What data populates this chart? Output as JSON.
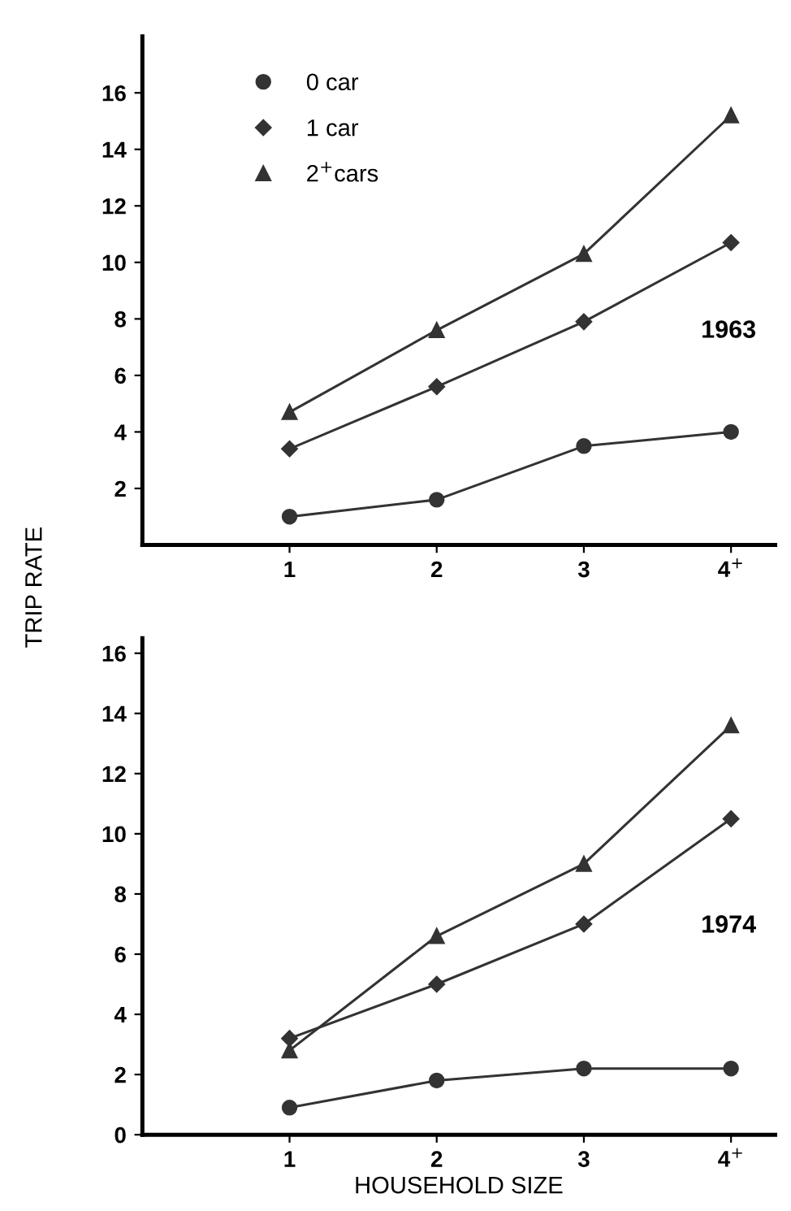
{
  "chart_data": [
    {
      "type": "line",
      "ylabel": "TRIP RATE",
      "categories": [
        "1",
        "2",
        "3",
        "4$^{+}$"
      ],
      "ylim": [
        0,
        18
      ],
      "yticks": [
        2,
        4,
        6,
        8,
        10,
        12,
        14,
        16
      ],
      "legend": "top left",
      "grid": false,
      "annotations": [
        "1963"
      ],
      "series": [
        {
          "name": "0 car",
          "color": "#333333",
          "marker": "circle",
          "values": [
            1.0,
            1.6,
            3.5,
            4.0
          ]
        },
        {
          "name": "1 car",
          "color": "#333333",
          "marker": "diamond",
          "values": [
            3.4,
            5.6,
            7.9,
            10.7
          ]
        },
        {
          "name": "2$^{+}$cars",
          "color": "#333333",
          "marker": "triangle",
          "values": [
            4.7,
            7.6,
            10.3,
            15.2
          ]
        }
      ]
    },
    {
      "type": "line",
      "xlabel": "HOUSEHOLD SIZE",
      "categories": [
        "1",
        "2",
        "3",
        "4$^{+}$"
      ],
      "ylim": [
        0,
        16.5
      ],
      "yticks": [
        0,
        2,
        4,
        6,
        8,
        10,
        12,
        14,
        16
      ],
      "grid": false,
      "annotations": [
        "1974"
      ],
      "series": [
        {
          "color": "#333333",
          "marker": "circle",
          "values": [
            0.9,
            1.8,
            2.2,
            2.2
          ]
        },
        {
          "color": "#333333",
          "marker": "diamond",
          "values": [
            3.2,
            5.0,
            7.0,
            10.5
          ]
        },
        {
          "color": "#333333",
          "marker": "triangle",
          "values": [
            2.8,
            6.6,
            9.0,
            13.6
          ]
        }
      ]
    }
  ]
}
